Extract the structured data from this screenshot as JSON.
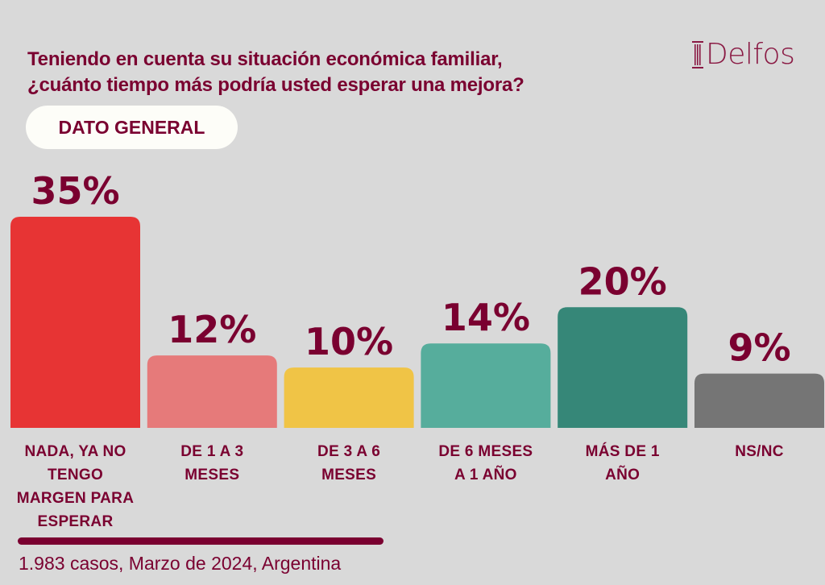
{
  "header": {
    "title_line1": "Teniendo en cuenta su situación económica familiar,",
    "title_line2": "¿cuánto tiempo más podría usted esperar una mejora?",
    "badge": "DATO GENERAL",
    "logo_text": "Delfos",
    "logo_icon": "column-pillar-icon"
  },
  "footer": {
    "note": "1.983 casos, Marzo de 2024, Argentina"
  },
  "colors": {
    "background": "#d9d9d9",
    "text": "#7a0030",
    "badge_bg": "#fdfdf8"
  },
  "chart_data": {
    "type": "bar",
    "title": "Teniendo en cuenta su situación económica familiar, ¿cuánto tiempo más podría usted esperar una mejora?",
    "subtitle": "DATO GENERAL",
    "categories": [
      [
        "NADA, YA NO",
        "TENGO",
        "MARGEN PARA",
        "ESPERAR"
      ],
      [
        "DE 1 A 3",
        "MESES"
      ],
      [
        "DE 3 A 6",
        "MESES"
      ],
      [
        "DE 6 MESES",
        "A 1 AÑO"
      ],
      [
        "MÁS DE 1",
        "AÑO"
      ],
      [
        "NS/NC"
      ]
    ],
    "values": [
      35,
      12,
      10,
      14,
      20,
      9
    ],
    "value_labels": [
      "35%",
      "12%",
      "10%",
      "14%",
      "20%",
      "9%"
    ],
    "colors": [
      "#e73434",
      "#e67a7a",
      "#f0c446",
      "#56ad9c",
      "#368778",
      "#757575"
    ],
    "unit": "%",
    "xlabel": "",
    "ylabel": "",
    "ylim": [
      0,
      35
    ],
    "grid": false,
    "legend": "none"
  }
}
